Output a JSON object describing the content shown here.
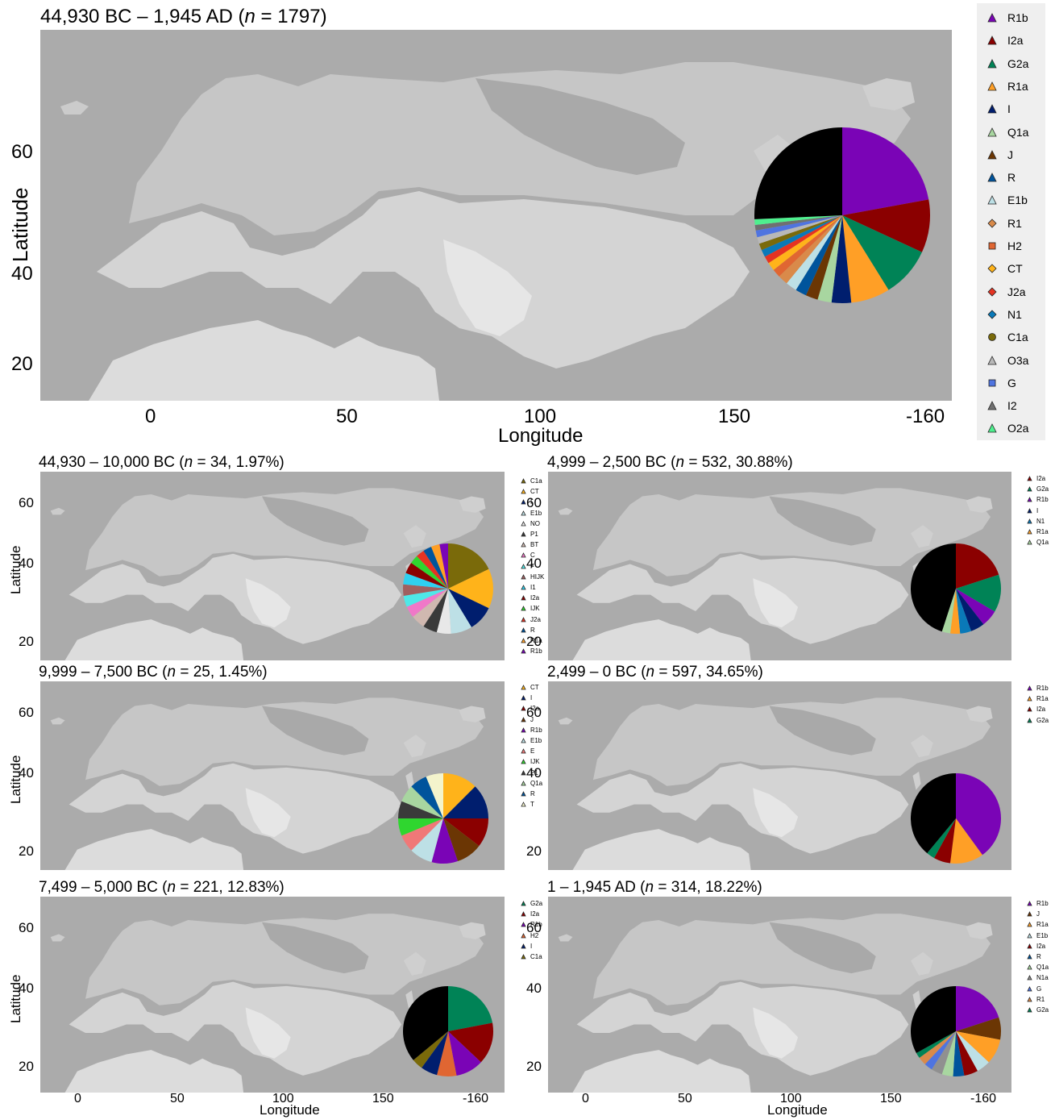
{
  "colors": {
    "R1b": "#7a04b6",
    "I2a": "#8b0000",
    "G2a": "#008356",
    "R1a": "#ff9f26",
    "I": "#001e6e",
    "Q1a": "#a8d6a0",
    "J": "#6b3604",
    "R": "#00549c",
    "E1b": "#bde0e6",
    "R1": "#d98a4a",
    "H2": "#e06632",
    "CT": "#ffb31a",
    "J2a": "#e53322",
    "N1": "#0a79b8",
    "C1a": "#7a6a0a",
    "O3a": "#b8b8b8",
    "G": "#4f74e0",
    "I2": "#707070",
    "O2a": "#4ef08e",
    "NO": "#e8e8e8",
    "P1": "#3a3a3a",
    "BT": "#d0b8b0",
    "C": "#f078c8",
    "F": "#4fe8e8",
    "HIJK": "#a06060",
    "I1": "#2fd0f0",
    "IJK": "#2fd62f",
    "E": "#f07878",
    "T": "#f4f4cc",
    "N1a": "#909090",
    "Other": "#000000"
  },
  "main": {
    "title": {
      "pre": "44,930 BC – 1,945 AD (",
      "n": "n",
      "post": " = 1797)"
    },
    "ylabel": "Latitude",
    "xlabel": "Longitude",
    "yticks": [
      "60",
      "40",
      "20"
    ],
    "xticks": [
      "0",
      "50",
      "100",
      "150",
      "-160"
    ],
    "legend": [
      "R1b",
      "I2a",
      "G2a",
      "R1a",
      "I",
      "Q1a",
      "J",
      "R",
      "E1b",
      "R1",
      "H2",
      "CT",
      "J2a",
      "N1",
      "C1a",
      "O3a",
      "G",
      "I2",
      "O2a"
    ]
  },
  "small_axes": {
    "yticks": [
      "60",
      "40",
      "20"
    ],
    "xticks": [
      "0",
      "50",
      "100",
      "150",
      "-160"
    ],
    "ylabel": "Latitude",
    "xlabel": "Longitude"
  },
  "panels": [
    {
      "pre": "44,930 – 10,000 BC (",
      "n": "n",
      "post": " = 34, 1.97%)",
      "legend": [
        "C1a",
        "CT",
        "I",
        "E1b",
        "NO",
        "P1",
        "BT",
        "C",
        "F",
        "HIJK",
        "I1",
        "I2a",
        "IJK",
        "J2a",
        "R",
        "R1a",
        "R1b"
      ]
    },
    {
      "pre": "4,999 – 2,500 BC (",
      "n": "n",
      "post": " = 532, 30.88%)",
      "legend": [
        "I2a",
        "G2a",
        "R1b",
        "I",
        "N1",
        "R1a",
        "Q1a"
      ]
    },
    {
      "pre": "9,999 – 7,500 BC (",
      "n": "n",
      "post": " = 25, 1.45%)",
      "legend": [
        "CT",
        "I",
        "I2a",
        "J",
        "R1b",
        "E1b",
        "E",
        "IJK",
        "P1",
        "Q1a",
        "R",
        "T"
      ]
    },
    {
      "pre": "2,499 – 0 BC (",
      "n": "n",
      "post": " = 597, 34.65%)",
      "legend": [
        "R1b",
        "R1a",
        "I2a",
        "G2a"
      ]
    },
    {
      "pre": "7,499 – 5,000 BC (",
      "n": "n",
      "post": " = 221, 12.83%)",
      "legend": [
        "G2a",
        "I2a",
        "R1b",
        "H2",
        "I",
        "C1a"
      ]
    },
    {
      "pre": "1 – 1,945 AD (",
      "n": "n",
      "post": " = 314, 18.22%)",
      "legend": [
        "R1b",
        "J",
        "R1a",
        "E1b",
        "I2a",
        "R",
        "Q1a",
        "N1a",
        "G",
        "R1",
        "G2a"
      ]
    }
  ],
  "chart_data": [
    {
      "type": "pie",
      "title": "44,930 BC – 1,945 AD (n = 1797)",
      "slices": [
        {
          "label": "R1b",
          "value": 21.5
        },
        {
          "label": "I2a",
          "value": 9.5
        },
        {
          "label": "G2a",
          "value": 9
        },
        {
          "label": "R1a",
          "value": 7
        },
        {
          "label": "I",
          "value": 3.5
        },
        {
          "label": "Q1a",
          "value": 2.5
        },
        {
          "label": "J",
          "value": 2.2
        },
        {
          "label": "R",
          "value": 2
        },
        {
          "label": "E1b",
          "value": 2
        },
        {
          "label": "R1",
          "value": 1.8
        },
        {
          "label": "H2",
          "value": 1.5
        },
        {
          "label": "CT",
          "value": 1.5
        },
        {
          "label": "J2a",
          "value": 1.3
        },
        {
          "label": "N1",
          "value": 1.3
        },
        {
          "label": "C1a",
          "value": 1.2
        },
        {
          "label": "O3a",
          "value": 1.2
        },
        {
          "label": "G",
          "value": 1.2
        },
        {
          "label": "I2",
          "value": 1
        },
        {
          "label": "O2a",
          "value": 1
        },
        {
          "label": "Other",
          "value": 25
        }
      ]
    },
    {
      "type": "pie",
      "title": "44,930 – 10,000 BC (n = 34, 1.97%)",
      "slices": [
        {
          "label": "C1a",
          "value": 17.5
        },
        {
          "label": "CT",
          "value": 14
        },
        {
          "label": "I",
          "value": 9
        },
        {
          "label": "E1b",
          "value": 7.5
        },
        {
          "label": "NO",
          "value": 5
        },
        {
          "label": "P1",
          "value": 5
        },
        {
          "label": "BT",
          "value": 5
        },
        {
          "label": "C",
          "value": 4
        },
        {
          "label": "F",
          "value": 4
        },
        {
          "label": "HIJK",
          "value": 4
        },
        {
          "label": "I1",
          "value": 4
        },
        {
          "label": "I2a",
          "value": 4
        },
        {
          "label": "IJK",
          "value": 3
        },
        {
          "label": "J2a",
          "value": 3
        },
        {
          "label": "R",
          "value": 3
        },
        {
          "label": "R1a",
          "value": 3
        },
        {
          "label": "R1b",
          "value": 3
        }
      ]
    },
    {
      "type": "pie",
      "title": "4,999 – 2,500 BC (n = 532, 30.88%)",
      "slices": [
        {
          "label": "I2a",
          "value": 20
        },
        {
          "label": "G2a",
          "value": 13.5
        },
        {
          "label": "R1b",
          "value": 6
        },
        {
          "label": "I",
          "value": 5
        },
        {
          "label": "N1",
          "value": 4
        },
        {
          "label": "R1a",
          "value": 3.5
        },
        {
          "label": "Q1a",
          "value": 3
        },
        {
          "label": "Other",
          "value": 45
        }
      ]
    },
    {
      "type": "pie",
      "title": "9,999 – 7,500 BC (n = 25, 1.45%)",
      "slices": [
        {
          "label": "CT",
          "value": 12
        },
        {
          "label": "I",
          "value": 12
        },
        {
          "label": "I2a",
          "value": 10
        },
        {
          "label": "J",
          "value": 9
        },
        {
          "label": "R1b",
          "value": 9
        },
        {
          "label": "E1b",
          "value": 8
        },
        {
          "label": "E",
          "value": 6
        },
        {
          "label": "IJK",
          "value": 6
        },
        {
          "label": "P1",
          "value": 6
        },
        {
          "label": "Q1a",
          "value": 6
        },
        {
          "label": "R",
          "value": 6
        },
        {
          "label": "T",
          "value": 6
        }
      ]
    },
    {
      "type": "pie",
      "title": "2,499 – 0 BC (n = 597, 34.65%)",
      "slices": [
        {
          "label": "R1b",
          "value": 40
        },
        {
          "label": "R1a",
          "value": 12
        },
        {
          "label": "I2a",
          "value": 6
        },
        {
          "label": "G2a",
          "value": 3
        },
        {
          "label": "Other",
          "value": 39
        }
      ]
    },
    {
      "type": "pie",
      "title": "7,499 – 5,000 BC (n = 221, 12.83%)",
      "slices": [
        {
          "label": "G2a",
          "value": 22
        },
        {
          "label": "I2a",
          "value": 15
        },
        {
          "label": "R1b",
          "value": 10
        },
        {
          "label": "H2",
          "value": 7
        },
        {
          "label": "I",
          "value": 6
        },
        {
          "label": "C1a",
          "value": 4
        },
        {
          "label": "Other",
          "value": 36
        }
      ]
    },
    {
      "type": "pie",
      "title": "1 – 1,945 AD (n = 314, 18.22%)",
      "slices": [
        {
          "label": "R1b",
          "value": 20
        },
        {
          "label": "J",
          "value": 8
        },
        {
          "label": "R1a",
          "value": 9
        },
        {
          "label": "E1b",
          "value": 5
        },
        {
          "label": "I2a",
          "value": 5
        },
        {
          "label": "R",
          "value": 4
        },
        {
          "label": "Q1a",
          "value": 4
        },
        {
          "label": "N1a",
          "value": 4
        },
        {
          "label": "G",
          "value": 3
        },
        {
          "label": "R1",
          "value": 3
        },
        {
          "label": "G2a",
          "value": 2
        },
        {
          "label": "Other",
          "value": 33
        }
      ]
    }
  ]
}
